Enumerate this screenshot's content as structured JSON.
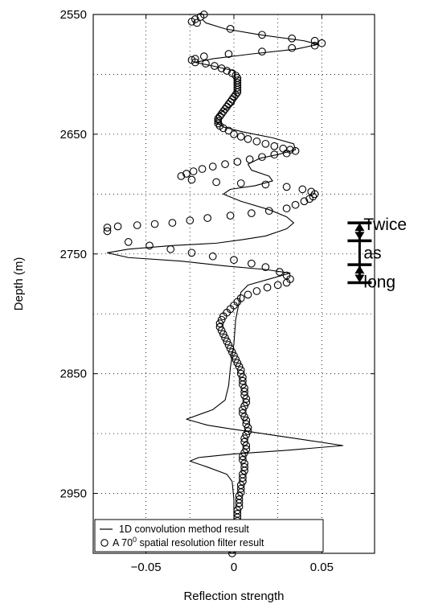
{
  "chart_data": {
    "type": "line",
    "orientation": "vertical-depth",
    "xlabel": "Reflection strength",
    "ylabel": "Depth (m)",
    "xlim": [
      -0.08,
      0.08
    ],
    "ylim": [
      2550,
      3000
    ],
    "y_reversed": true,
    "grid": true,
    "x_ticks": [
      -0.05,
      0,
      0.05
    ],
    "x_tick_labels": [
      "−0.05",
      "0",
      "0.05"
    ],
    "x_grid": [
      -0.05,
      -0.025,
      0,
      0.025,
      0.05
    ],
    "y_ticks": [
      2550,
      2650,
      2750,
      2850,
      2950
    ],
    "y_tick_labels": [
      "2550",
      "2650",
      "2750",
      "2850",
      "2950"
    ],
    "y_grid": [
      2550,
      2600,
      2650,
      2700,
      2750,
      2800,
      2850,
      2900,
      2950
    ],
    "legend_position": "bottom-left",
    "legend": [
      {
        "marker": "line",
        "text": "1D convolution method result"
      },
      {
        "marker": "circle",
        "prefix": "A 70",
        "sup": "0",
        "suffix": " spatial resolution filter result"
      }
    ],
    "series": [
      {
        "style": "line",
        "color": "#000000",
        "points": [
          [
            -0.018,
            2554
          ],
          [
            -0.016,
            2557
          ],
          [
            -0.005,
            2562
          ],
          [
            0.015,
            2567
          ],
          [
            0.04,
            2572
          ],
          [
            0.048,
            2575
          ],
          [
            0.035,
            2579
          ],
          [
            0.01,
            2583
          ],
          [
            -0.012,
            2587
          ],
          [
            -0.022,
            2590
          ],
          [
            -0.012,
            2593
          ],
          [
            0.0,
            2597
          ],
          [
            0.001,
            2605
          ],
          [
            0.001,
            2618
          ],
          [
            0.0,
            2625
          ],
          [
            -0.006,
            2630
          ],
          [
            -0.01,
            2635
          ],
          [
            -0.01,
            2640
          ],
          [
            -0.006,
            2644
          ],
          [
            0.005,
            2648
          ],
          [
            0.022,
            2653
          ],
          [
            0.034,
            2658
          ],
          [
            0.035,
            2663
          ],
          [
            0.025,
            2667
          ],
          [
            0.015,
            2670
          ],
          [
            0.008,
            2675
          ],
          [
            0.01,
            2680
          ],
          [
            0.02,
            2685
          ],
          [
            0.022,
            2689
          ],
          [
            0.012,
            2693
          ],
          [
            -0.002,
            2696
          ],
          [
            -0.006,
            2700
          ],
          [
            0.004,
            2706
          ],
          [
            0.02,
            2713
          ],
          [
            0.03,
            2719
          ],
          [
            0.034,
            2724
          ],
          [
            0.03,
            2729
          ],
          [
            0.018,
            2735
          ],
          [
            0.005,
            2738
          ],
          [
            -0.01,
            2741
          ],
          [
            -0.035,
            2743
          ],
          [
            -0.06,
            2746
          ],
          [
            -0.072,
            2749
          ],
          [
            -0.06,
            2753
          ],
          [
            -0.03,
            2756
          ],
          [
            -0.005,
            2760
          ],
          [
            0.018,
            2763
          ],
          [
            0.032,
            2766
          ],
          [
            0.02,
            2771
          ],
          [
            0.008,
            2776
          ],
          [
            0.004,
            2782
          ],
          [
            0.003,
            2790
          ],
          [
            0.001,
            2805
          ],
          [
            0.0,
            2825
          ],
          [
            -0.002,
            2845
          ],
          [
            -0.003,
            2860
          ],
          [
            -0.005,
            2872
          ],
          [
            -0.012,
            2880
          ],
          [
            -0.027,
            2888
          ],
          [
            -0.015,
            2893
          ],
          [
            -0.002,
            2896
          ],
          [
            0.03,
            2903
          ],
          [
            0.062,
            2910
          ],
          [
            0.03,
            2914
          ],
          [
            0.0,
            2917
          ],
          [
            -0.02,
            2920
          ],
          [
            -0.025,
            2923
          ],
          [
            -0.015,
            2928
          ],
          [
            -0.004,
            2934
          ],
          [
            -0.001,
            2940
          ],
          [
            0.0,
            2955
          ],
          [
            0.0,
            3000
          ]
        ]
      },
      {
        "style": "markers",
        "marker": "circle",
        "color": "#000000",
        "points": [
          [
            -0.017,
            2550
          ],
          [
            -0.019,
            2552
          ],
          [
            -0.022,
            2554
          ],
          [
            -0.024,
            2556
          ],
          [
            -0.021,
            2557
          ],
          [
            -0.002,
            2562
          ],
          [
            0.016,
            2567
          ],
          [
            0.033,
            2570
          ],
          [
            0.046,
            2572
          ],
          [
            0.05,
            2574
          ],
          [
            0.046,
            2576
          ],
          [
            0.033,
            2578
          ],
          [
            0.016,
            2581
          ],
          [
            -0.003,
            2583
          ],
          [
            -0.017,
            2585
          ],
          [
            -0.022,
            2587
          ],
          [
            -0.024,
            2588
          ],
          [
            -0.022,
            2590
          ],
          [
            -0.016,
            2591
          ],
          [
            -0.011,
            2593
          ],
          [
            -0.007,
            2595
          ],
          [
            -0.004,
            2597
          ],
          [
            -0.001,
            2599
          ],
          [
            0.001,
            2601
          ],
          [
            0.002,
            2603
          ],
          [
            0.002,
            2605
          ],
          [
            0.002,
            2607
          ],
          [
            0.002,
            2609
          ],
          [
            0.002,
            2611
          ],
          [
            0.002,
            2613
          ],
          [
            0.002,
            2615
          ],
          [
            0.001,
            2617
          ],
          [
            0.0,
            2619
          ],
          [
            -0.001,
            2621
          ],
          [
            -0.002,
            2623
          ],
          [
            -0.003,
            2625
          ],
          [
            -0.004,
            2627
          ],
          [
            -0.005,
            2629
          ],
          [
            -0.006,
            2631
          ],
          [
            -0.007,
            2633
          ],
          [
            -0.008,
            2635
          ],
          [
            -0.009,
            2637
          ],
          [
            -0.009,
            2639
          ],
          [
            -0.009,
            2641
          ],
          [
            -0.008,
            2643
          ],
          [
            -0.006,
            2645
          ],
          [
            -0.003,
            2647
          ],
          [
            0.0,
            2650
          ],
          [
            0.004,
            2652
          ],
          [
            0.008,
            2654
          ],
          [
            0.013,
            2656
          ],
          [
            0.018,
            2658
          ],
          [
            0.023,
            2660
          ],
          [
            0.028,
            2662
          ],
          [
            0.032,
            2663
          ],
          [
            0.035,
            2664
          ],
          [
            0.03,
            2666
          ],
          [
            0.023,
            2667
          ],
          [
            0.016,
            2669
          ],
          [
            0.009,
            2671
          ],
          [
            0.002,
            2673
          ],
          [
            -0.005,
            2675
          ],
          [
            -0.012,
            2677
          ],
          [
            -0.018,
            2679
          ],
          [
            -0.023,
            2681
          ],
          [
            -0.027,
            2683
          ],
          [
            -0.03,
            2685
          ],
          [
            -0.024,
            2688
          ],
          [
            -0.01,
            2690
          ],
          [
            0.004,
            2691
          ],
          [
            0.018,
            2692
          ],
          [
            0.03,
            2694
          ],
          [
            0.039,
            2696
          ],
          [
            0.044,
            2698
          ],
          [
            0.046,
            2700
          ],
          [
            0.045,
            2702
          ],
          [
            0.043,
            2704
          ],
          [
            0.04,
            2706
          ],
          [
            0.035,
            2709
          ],
          [
            0.03,
            2712
          ],
          [
            0.02,
            2714
          ],
          [
            0.01,
            2716
          ],
          [
            -0.002,
            2718
          ],
          [
            -0.015,
            2720
          ],
          [
            -0.025,
            2722
          ],
          [
            -0.035,
            2724
          ],
          [
            -0.045,
            2725
          ],
          [
            -0.055,
            2726
          ],
          [
            -0.066,
            2727
          ],
          [
            -0.072,
            2728
          ],
          [
            -0.072,
            2731
          ],
          [
            -0.06,
            2740
          ],
          [
            -0.048,
            2743
          ],
          [
            -0.036,
            2746
          ],
          [
            -0.024,
            2749
          ],
          [
            -0.012,
            2752
          ],
          [
            0.0,
            2755
          ],
          [
            0.01,
            2758
          ],
          [
            0.018,
            2761
          ],
          [
            0.026,
            2765
          ],
          [
            0.03,
            2768
          ],
          [
            0.032,
            2771
          ],
          [
            0.03,
            2774
          ],
          [
            0.025,
            2776
          ],
          [
            0.019,
            2778
          ],
          [
            0.013,
            2781
          ],
          [
            0.008,
            2784
          ],
          [
            0.004,
            2787
          ],
          [
            0.002,
            2790
          ],
          [
            0.0,
            2793
          ],
          [
            -0.002,
            2796
          ],
          [
            -0.004,
            2799
          ],
          [
            -0.006,
            2802
          ],
          [
            -0.007,
            2805
          ],
          [
            -0.008,
            2808
          ],
          [
            -0.008,
            2811
          ],
          [
            -0.007,
            2814
          ],
          [
            -0.006,
            2817
          ],
          [
            -0.005,
            2820
          ],
          [
            -0.004,
            2823
          ],
          [
            -0.003,
            2826
          ],
          [
            -0.002,
            2829
          ],
          [
            -0.001,
            2832
          ],
          [
            0.0,
            2835
          ],
          [
            0.001,
            2838
          ],
          [
            0.002,
            2841
          ],
          [
            0.003,
            2844
          ],
          [
            0.004,
            2847
          ],
          [
            0.004,
            2850
          ],
          [
            0.005,
            2853
          ],
          [
            0.005,
            2856
          ],
          [
            0.005,
            2859
          ],
          [
            0.006,
            2862
          ],
          [
            0.006,
            2865
          ],
          [
            0.006,
            2868
          ],
          [
            0.007,
            2871
          ],
          [
            0.007,
            2874
          ],
          [
            0.006,
            2877
          ],
          [
            0.005,
            2880
          ],
          [
            0.005,
            2883
          ],
          [
            0.006,
            2886
          ],
          [
            0.007,
            2889
          ],
          [
            0.007,
            2892
          ],
          [
            0.008,
            2895
          ],
          [
            0.008,
            2898
          ],
          [
            0.007,
            2901
          ],
          [
            0.006,
            2904
          ],
          [
            0.006,
            2907
          ],
          [
            0.007,
            2910
          ],
          [
            0.007,
            2913
          ],
          [
            0.006,
            2916
          ],
          [
            0.005,
            2919
          ],
          [
            0.005,
            2922
          ],
          [
            0.006,
            2925
          ],
          [
            0.006,
            2928
          ],
          [
            0.006,
            2931
          ],
          [
            0.005,
            2934
          ],
          [
            0.005,
            2937
          ],
          [
            0.005,
            2940
          ],
          [
            0.004,
            2943
          ],
          [
            0.004,
            2946
          ],
          [
            0.004,
            2949
          ],
          [
            0.003,
            2952
          ],
          [
            0.003,
            2955
          ],
          [
            0.003,
            2958
          ],
          [
            0.003,
            2961
          ],
          [
            0.002,
            2964
          ],
          [
            0.002,
            2967
          ],
          [
            0.002,
            2970
          ],
          [
            0.002,
            2973
          ],
          [
            0.001,
            2976
          ],
          [
            0.001,
            2979
          ],
          [
            0.001,
            2982
          ],
          [
            0.0,
            2985
          ],
          [
            0.0,
            2988
          ],
          [
            0.0,
            2991
          ],
          [
            -0.001,
            2994
          ],
          [
            -0.001,
            2997
          ],
          [
            -0.001,
            3000
          ]
        ]
      }
    ],
    "annotations": [
      {
        "type": "bracket",
        "x": 0.0715,
        "y_top": 2724,
        "y_mid": 2739,
        "y_mid2": 2759,
        "y_bottom": 2774
      },
      {
        "type": "text",
        "lines": [
          "Twice",
          "as",
          "long"
        ]
      }
    ]
  }
}
